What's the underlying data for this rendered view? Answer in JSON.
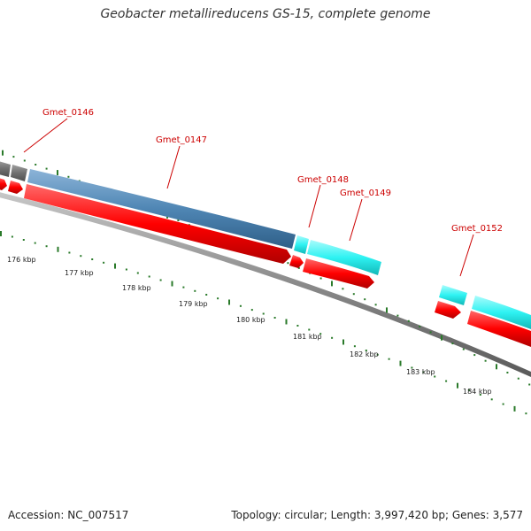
{
  "title": "Geobacter metallireducens GS-15, complete genome",
  "footer": {
    "accession": "Accession: NC_007517",
    "topology": "Topology: circular; Length: 3,997,420 bp; Genes: 3,577"
  },
  "colors": {
    "background": "#ffffff",
    "backbone": "#8a8a8a",
    "cds_reverse": "#ff0000",
    "gene_blue": "#4f86b4",
    "gene_cyan": "#2ef2f2",
    "gene_gray": "#707070",
    "tick": "#2a7a2a",
    "label": "#cc0000"
  },
  "gene_labels": [
    {
      "name": "Gmet_0146"
    },
    {
      "name": "Gmet_0147"
    },
    {
      "name": "Gmet_0148"
    },
    {
      "name": "Gmet_0149"
    },
    {
      "name": "Gmet_0152"
    }
  ],
  "scale_labels": [
    "176 kbp",
    "177 kbp",
    "178 kbp",
    "179 kbp",
    "180 kbp",
    "181 kbp",
    "182 kbp",
    "183 kbp",
    "184 kbp"
  ]
}
